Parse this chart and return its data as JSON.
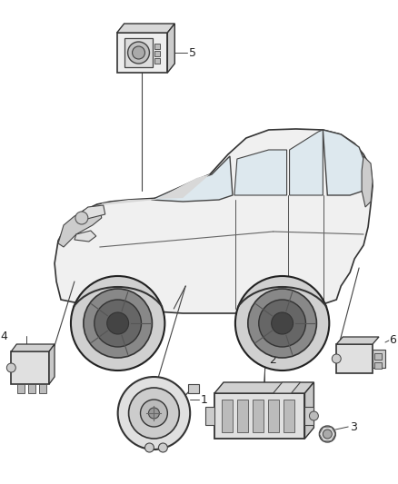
{
  "bg_color": "#ffffff",
  "line_color": "#222222",
  "fig_w": 4.38,
  "fig_h": 5.33,
  "dpi": 100,
  "components": {
    "1_label": "1",
    "2_label": "2",
    "3_label": "3",
    "4_label": "4",
    "5_label": "5",
    "6_label": "6"
  },
  "label_fontsize": 9,
  "car_outline_color": "#333333",
  "comp_fill": "#e8e8e8",
  "comp_edge": "#333333"
}
